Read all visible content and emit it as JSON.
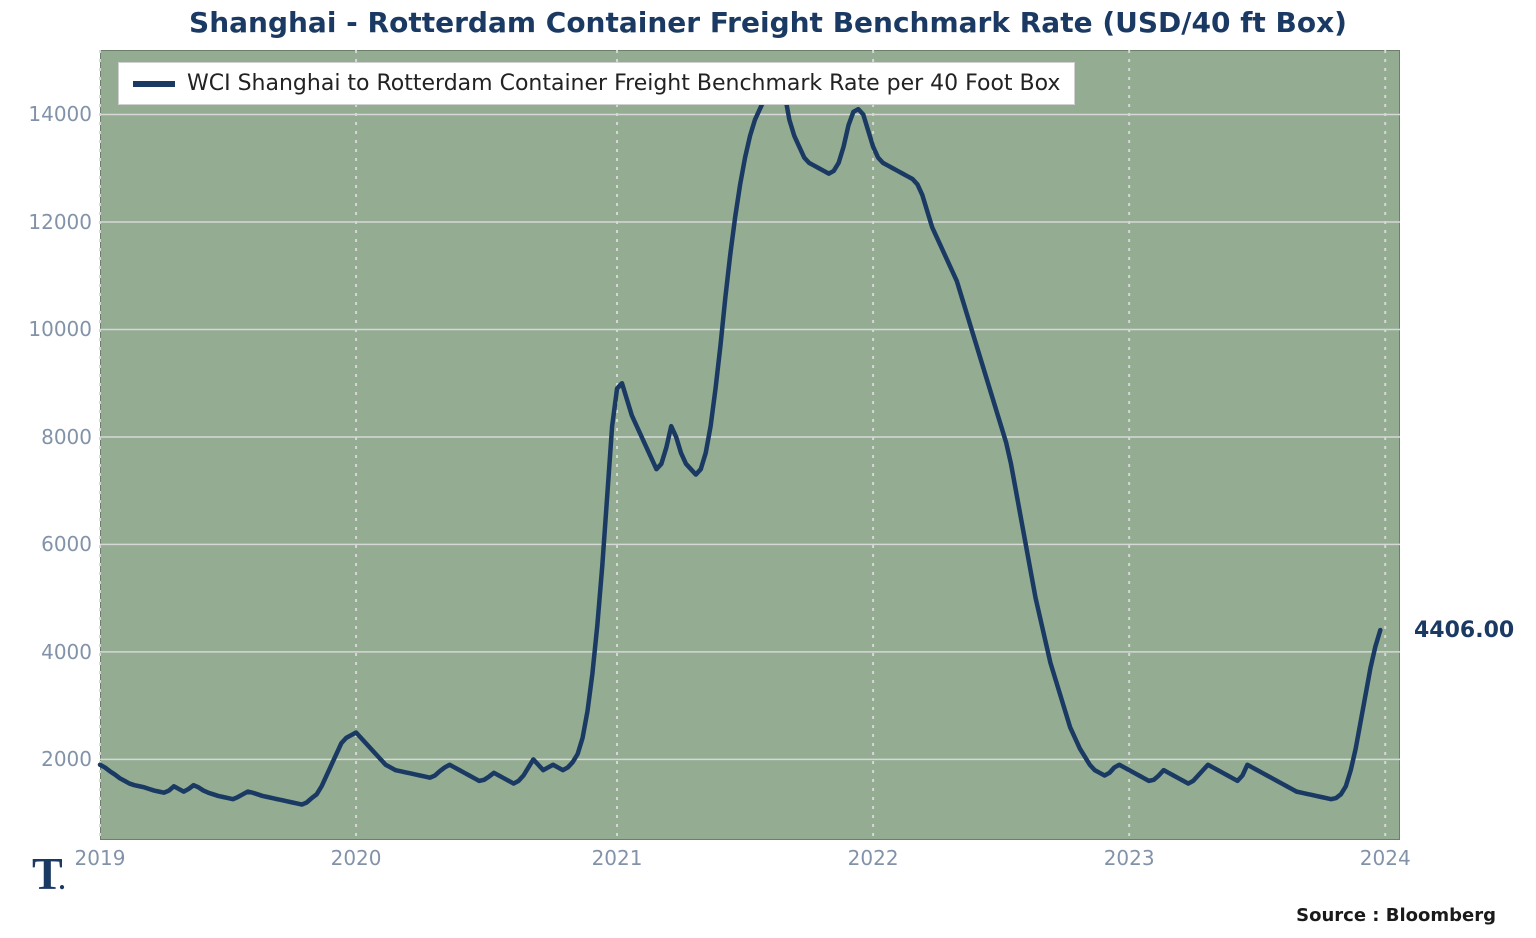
{
  "chart": {
    "type": "line",
    "title": "Shanghai - Rotterdam Container Freight Benchmark Rate (USD/40 ft Box)",
    "title_fontsize": 28,
    "title_color": "#1b3a63",
    "source_text": "Source : Bloomberg",
    "logo_text": "T",
    "plot_bg": "#93ac92",
    "grid_color": "#d7d7d7",
    "axis_color": "#6b7f6b",
    "end_value_label": "4406.00",
    "end_value_color": "#1b3a63",
    "legend": {
      "label": "WCI Shanghai to Rotterdam Container Freight Benchmark Rate per 40 Foot Box",
      "color": "#1b3a63",
      "line_width": 6,
      "fontsize": 22
    },
    "x": {
      "ticks": [
        0,
        52,
        105,
        157,
        209,
        261
      ],
      "tick_labels": [
        "2019",
        "2020",
        "2021",
        "2022",
        "2023",
        "2024"
      ],
      "lim": [
        0,
        264
      ],
      "label_fontsize": 20,
      "label_opacity": 0.55,
      "vgrid_dash": "3 6"
    },
    "y": {
      "ticks": [
        2000,
        4000,
        6000,
        8000,
        10000,
        12000,
        14000
      ],
      "tick_labels": [
        "2000",
        "4000",
        "6000",
        "8000",
        "10000",
        "12000",
        "14000"
      ],
      "lim": [
        500,
        15200
      ],
      "label_fontsize": 20,
      "label_opacity": 0.55
    },
    "series": {
      "color": "#1b3a63",
      "line_width": 4.5,
      "values": [
        1900,
        1850,
        1780,
        1720,
        1650,
        1600,
        1550,
        1520,
        1500,
        1480,
        1450,
        1420,
        1400,
        1380,
        1420,
        1500,
        1450,
        1400,
        1450,
        1520,
        1480,
        1420,
        1380,
        1350,
        1320,
        1300,
        1280,
        1260,
        1300,
        1350,
        1400,
        1380,
        1350,
        1320,
        1300,
        1280,
        1260,
        1240,
        1220,
        1200,
        1180,
        1160,
        1200,
        1280,
        1350,
        1500,
        1700,
        1900,
        2100,
        2300,
        2400,
        2450,
        2500,
        2400,
        2300,
        2200,
        2100,
        2000,
        1900,
        1850,
        1800,
        1780,
        1760,
        1740,
        1720,
        1700,
        1680,
        1660,
        1700,
        1780,
        1850,
        1900,
        1850,
        1800,
        1750,
        1700,
        1650,
        1600,
        1620,
        1680,
        1750,
        1700,
        1650,
        1600,
        1550,
        1600,
        1700,
        1850,
        2000,
        1900,
        1800,
        1850,
        1900,
        1850,
        1800,
        1850,
        1950,
        2100,
        2400,
        2900,
        3600,
        4500,
        5600,
        6900,
        8200,
        8900,
        9000,
        8700,
        8400,
        8200,
        8000,
        7800,
        7600,
        7400,
        7500,
        7800,
        8200,
        8000,
        7700,
        7500,
        7400,
        7300,
        7400,
        7700,
        8200,
        8900,
        9700,
        10600,
        11400,
        12100,
        12700,
        13200,
        13600,
        13900,
        14100,
        14300,
        14500,
        14650,
        14750,
        14400,
        13900,
        13600,
        13400,
        13200,
        13100,
        13050,
        13000,
        12950,
        12900,
        12950,
        13100,
        13400,
        13800,
        14050,
        14100,
        14000,
        13700,
        13400,
        13200,
        13100,
        13050,
        13000,
        12950,
        12900,
        12850,
        12800,
        12700,
        12500,
        12200,
        11900,
        11700,
        11500,
        11300,
        11100,
        10900,
        10600,
        10300,
        10000,
        9700,
        9400,
        9100,
        8800,
        8500,
        8200,
        7900,
        7500,
        7000,
        6500,
        6000,
        5500,
        5000,
        4600,
        4200,
        3800,
        3500,
        3200,
        2900,
        2600,
        2400,
        2200,
        2050,
        1900,
        1800,
        1750,
        1700,
        1750,
        1850,
        1900,
        1850,
        1800,
        1750,
        1700,
        1650,
        1600,
        1620,
        1700,
        1800,
        1750,
        1700,
        1650,
        1600,
        1550,
        1600,
        1700,
        1800,
        1900,
        1850,
        1800,
        1750,
        1700,
        1650,
        1600,
        1700,
        1900,
        1850,
        1800,
        1750,
        1700,
        1650,
        1600,
        1550,
        1500,
        1450,
        1400,
        1380,
        1360,
        1340,
        1320,
        1300,
        1280,
        1260,
        1280,
        1350,
        1500,
        1800,
        2200,
        2700,
        3200,
        3700,
        4100,
        4406
      ]
    }
  }
}
